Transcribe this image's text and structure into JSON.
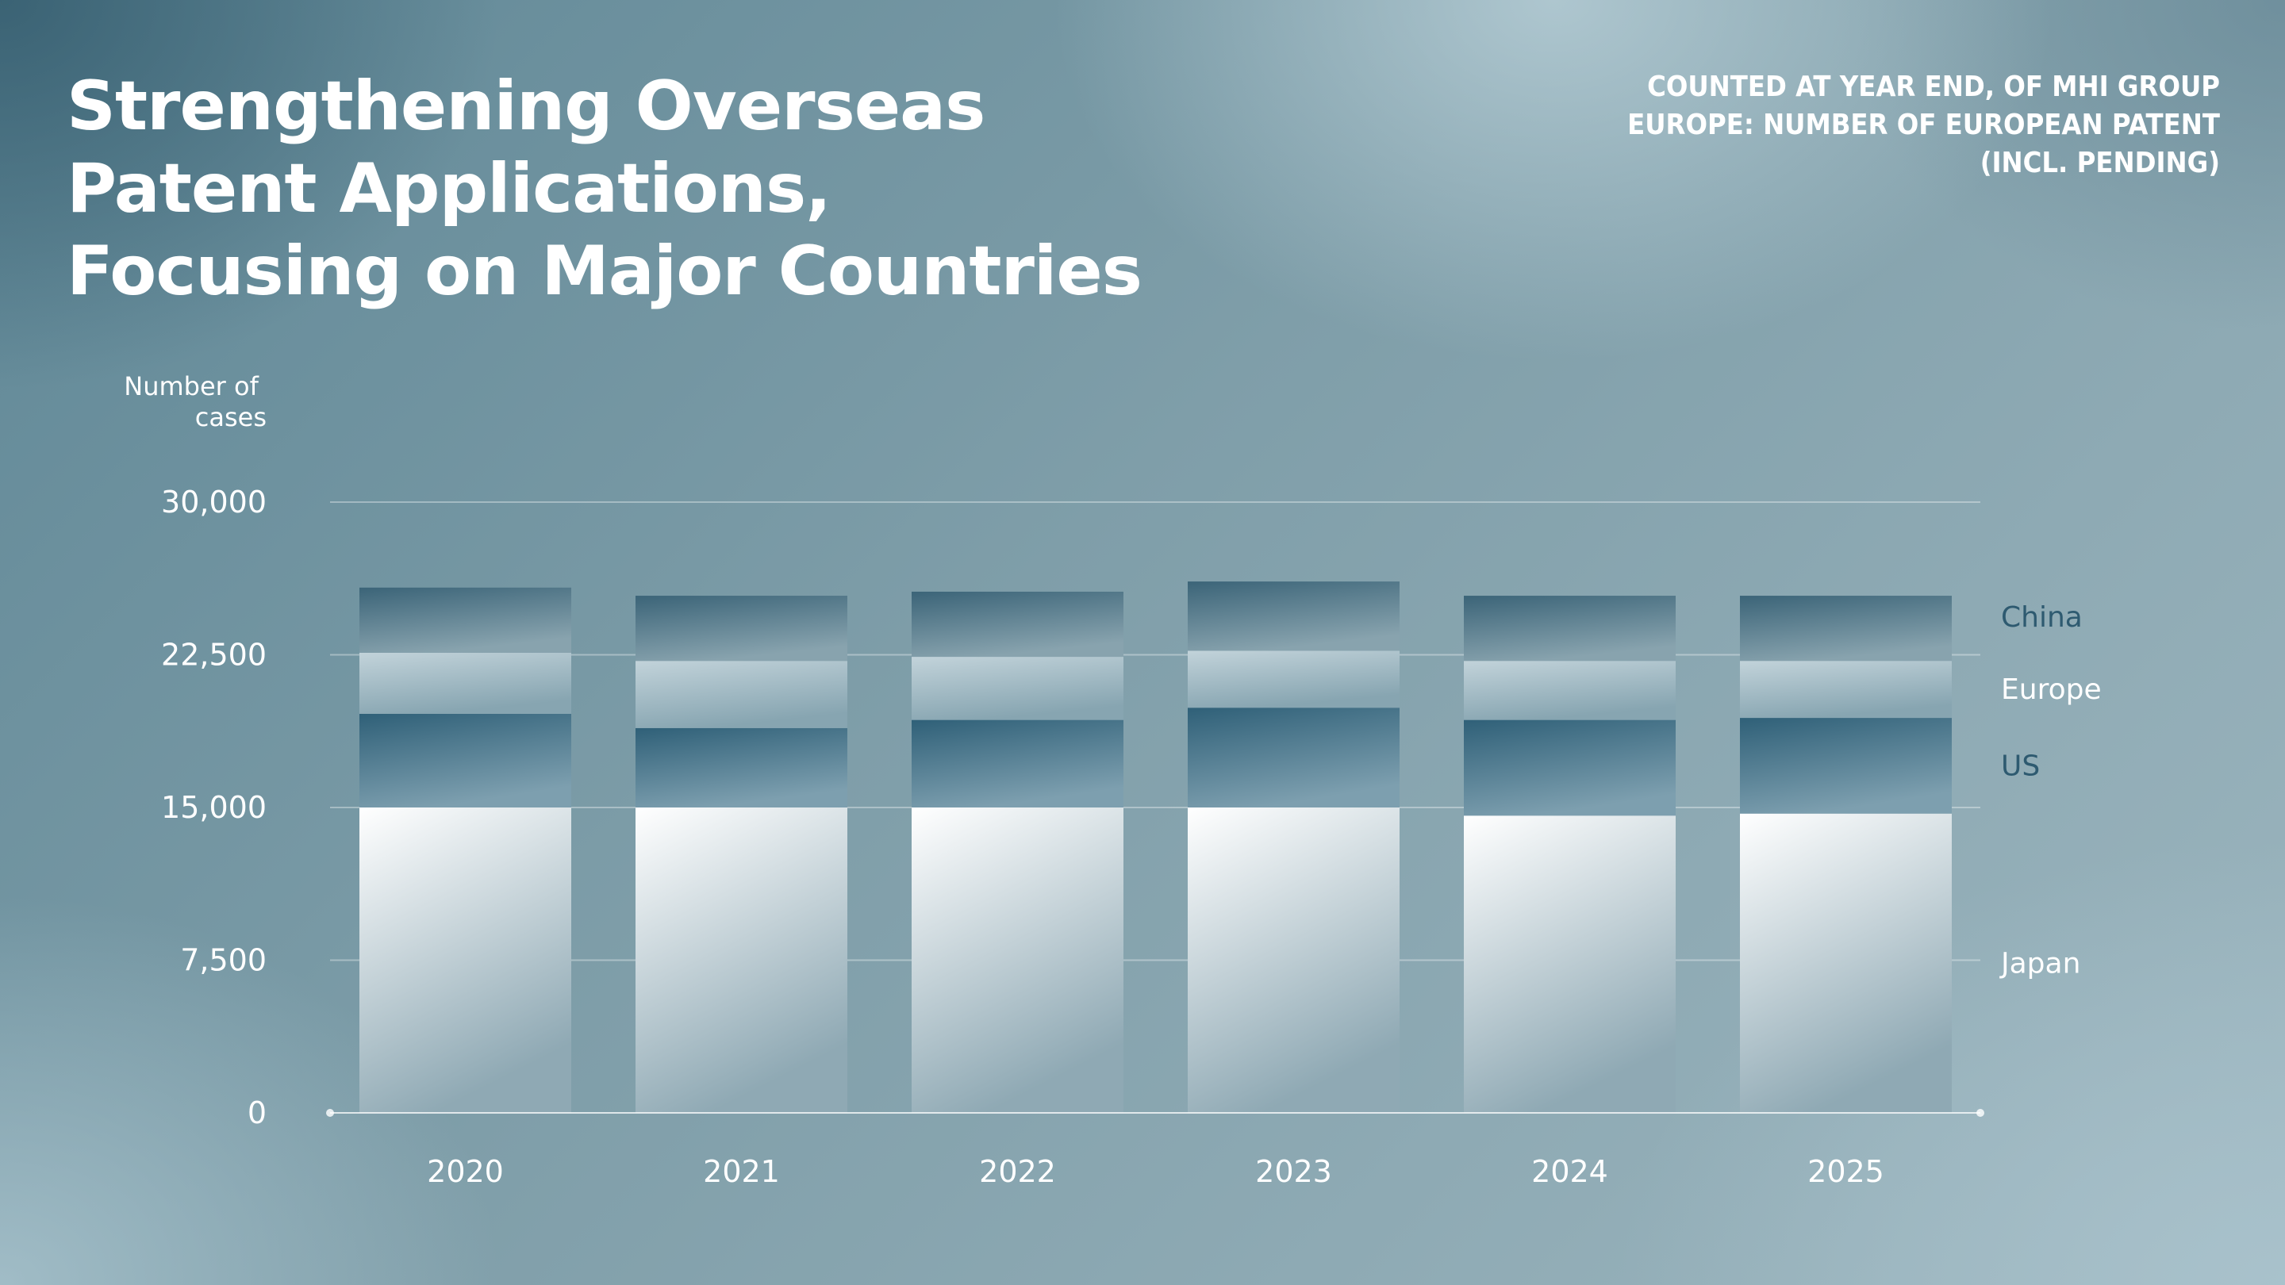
{
  "chart_data": {
    "type": "bar",
    "stacked": true,
    "title_lines": [
      "Strengthening Overseas",
      "Patent Applications,",
      "Focusing on Major Countries"
    ],
    "note_lines": [
      "COUNTED AT YEAR END, OF MHI GROUP",
      "EUROPE: NUMBER OF EUROPEAN PATENT",
      "(INCL. PENDING)"
    ],
    "ylabel_lines": [
      "Number of",
      "cases"
    ],
    "categories": [
      "2020",
      "2021",
      "2022",
      "2023",
      "2024",
      "2025"
    ],
    "yticks": [
      0,
      7500,
      15000,
      22500,
      30000
    ],
    "ytick_labels": [
      "0",
      "7,500",
      "15,000",
      "22,500",
      "30,000"
    ],
    "ylim": [
      0,
      30000
    ],
    "grid": true,
    "legend_position": "right",
    "series": [
      {
        "name": "Japan",
        "values": [
          15000,
          15000,
          15000,
          15000,
          14600,
          14700
        ],
        "color_top": "#ffffff",
        "color_bottom": "#8fa9b4",
        "label_color": "#ffffff"
      },
      {
        "name": "US",
        "values": [
          4600,
          3900,
          4300,
          4900,
          4700,
          4700
        ],
        "color_top": "#2f6078",
        "color_bottom": "#7d9faf",
        "label_color": "#2e5a70"
      },
      {
        "name": "Europe",
        "values": [
          3000,
          3300,
          3100,
          2800,
          2900,
          2800
        ],
        "color_top": "#c2d3da",
        "color_bottom": "#87a5b1",
        "label_color": "#ffffff"
      },
      {
        "name": "China",
        "values": [
          3200,
          3200,
          3200,
          3400,
          3200,
          3200
        ],
        "color_top": "#3b6478",
        "color_bottom": "#88a3ae",
        "label_color": "#2e5a70"
      }
    ]
  }
}
